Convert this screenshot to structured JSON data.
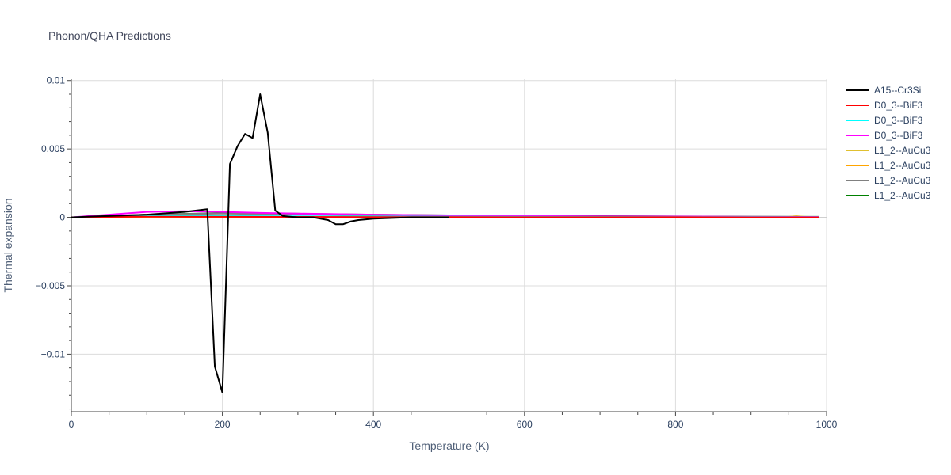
{
  "chart_data": {
    "type": "line",
    "title": "Phonon/QHA Predictions",
    "xlabel": "Temperature (K)",
    "ylabel": "Thermal expansion",
    "xlim": [
      0,
      1000
    ],
    "ylim": [
      -0.0142,
      0.0101
    ],
    "x_ticks": [
      0,
      200,
      400,
      600,
      800,
      1000
    ],
    "x_tick_labels": [
      "0",
      "200",
      "400",
      "600",
      "800",
      "1000"
    ],
    "y_ticks": [
      0.01,
      0.005,
      0,
      -0.005,
      -0.01
    ],
    "y_tick_labels": [
      "0.01",
      "0.005",
      "0",
      "−0.005",
      "−0.01"
    ],
    "grid": true,
    "legend_position": "top-right",
    "series": [
      {
        "name": "A15--Cr3Si",
        "color": "#000000",
        "x": [
          0,
          20,
          50,
          100,
          150,
          180,
          190,
          200,
          210,
          220,
          230,
          240,
          250,
          260,
          270,
          280,
          300,
          320,
          340,
          350,
          360,
          370,
          380,
          400,
          450,
          500
        ],
        "y": [
          0,
          5e-05,
          0.0001,
          0.0002,
          0.0004,
          0.0006,
          -0.0109,
          -0.0128,
          0.0039,
          0.0052,
          0.0061,
          0.0058,
          0.009,
          0.0062,
          0.0005,
          0.0001,
          0,
          0,
          -0.0002,
          -0.0005,
          -0.0005,
          -0.0003,
          -0.0002,
          -0.0001,
          0,
          0
        ]
      },
      {
        "name": "D0_3--BiF3",
        "color": "#ff0000",
        "x": [
          0,
          50,
          100,
          200,
          300,
          400,
          500,
          600,
          700,
          800,
          900,
          990
        ],
        "y": [
          0,
          3e-05,
          5e-05,
          4e-05,
          3e-05,
          2e-05,
          2e-05,
          1e-05,
          1e-05,
          1e-05,
          0,
          0
        ]
      },
      {
        "name": "D0_3--BiF3",
        "color": "#00ffff",
        "x": [
          0,
          50,
          100,
          200,
          300,
          400,
          500,
          600,
          700,
          800,
          900,
          990
        ],
        "y": [
          0,
          8e-05,
          0.00012,
          0.0001,
          8e-05,
          6e-05,
          5e-05,
          4e-05,
          3e-05,
          2e-05,
          2e-05,
          1e-05
        ]
      },
      {
        "name": "D0_3--BiF3",
        "color": "#ff00ff",
        "x": [
          0,
          50,
          100,
          120,
          150,
          200,
          250,
          300,
          400,
          500,
          600,
          700,
          800,
          900,
          990
        ],
        "y": [
          0,
          0.0002,
          0.0004,
          0.00042,
          0.00045,
          0.0004,
          0.00033,
          0.00028,
          0.0002,
          0.00015,
          0.0001,
          8e-05,
          6e-05,
          4e-05,
          3e-05
        ]
      },
      {
        "name": "L1_2--AuCu3",
        "color": "#e0c030",
        "x": [
          0,
          100,
          200,
          300,
          400,
          500,
          600,
          700,
          800,
          900,
          950,
          960,
          970,
          990
        ],
        "y": [
          0,
          3e-05,
          3e-05,
          3e-05,
          2e-05,
          2e-05,
          2e-05,
          2e-05,
          2e-05,
          2e-05,
          4e-05,
          9e-05,
          4e-05,
          2e-05
        ]
      },
      {
        "name": "L1_2--AuCu3",
        "color": "#ffa500",
        "x": [
          0,
          100,
          200,
          300,
          400,
          500,
          600,
          700,
          800,
          900,
          990
        ],
        "y": [
          0,
          2e-05,
          2e-05,
          1e-05,
          1e-05,
          1e-05,
          1e-05,
          1e-05,
          1e-05,
          1e-05,
          1e-05
        ]
      },
      {
        "name": "L1_2--AuCu3",
        "color": "#808080",
        "x": [
          0,
          50,
          100,
          150,
          200,
          300,
          400,
          500,
          600,
          700,
          800,
          900,
          990
        ],
        "y": [
          0,
          0.0001,
          0.0002,
          0.00025,
          0.00028,
          0.00022,
          0.00015,
          0.00011,
          8e-05,
          6e-05,
          5e-05,
          4e-05,
          3e-05
        ]
      },
      {
        "name": "L1_2--AuCu3",
        "color": "#008000",
        "x": [
          0,
          50,
          100,
          150,
          200,
          250,
          300,
          400,
          500,
          600,
          700,
          800,
          900,
          990
        ],
        "y": [
          0,
          0.0001,
          0.0002,
          0.00026,
          0.0003,
          0.0003,
          0.00027,
          0.0002,
          0.00015,
          0.00011,
          9e-05,
          7e-05,
          5e-05,
          4e-05
        ]
      }
    ]
  }
}
